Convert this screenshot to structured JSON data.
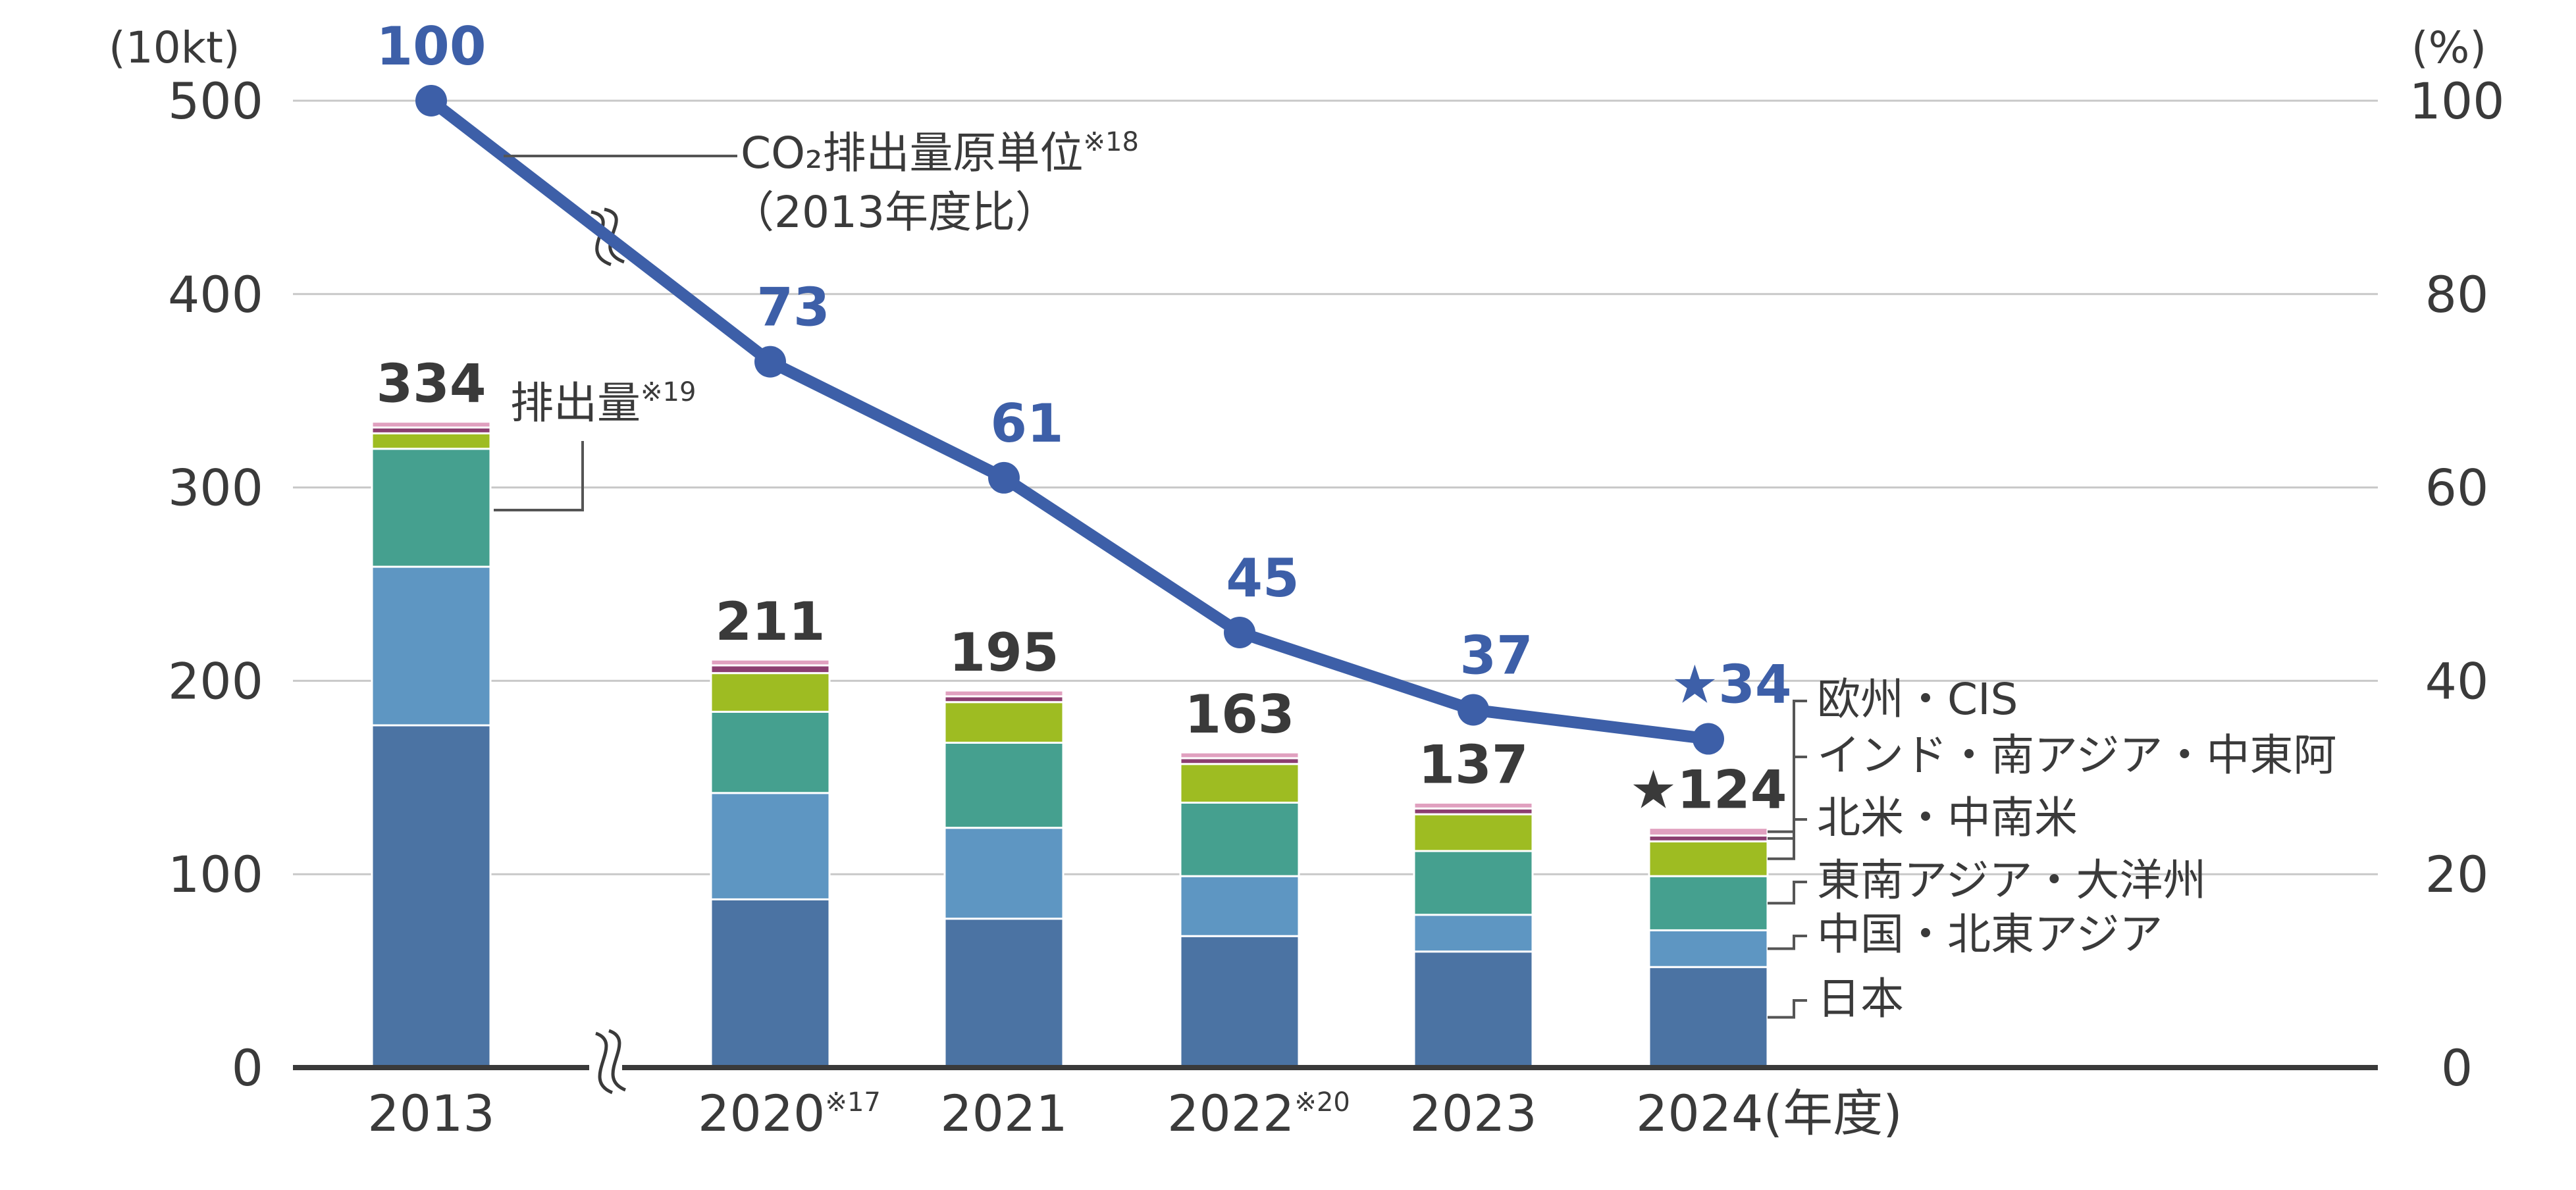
{
  "chart_data": {
    "type": "bar+line",
    "categories": [
      "2013",
      "2020",
      "2021",
      "2022",
      "2023",
      "2024"
    ],
    "category_notes": [
      "",
      "※17",
      "",
      "※20",
      "",
      ""
    ],
    "x_unit": "(年度)",
    "y_left": {
      "unit": "(10kt)",
      "ticks": [
        0,
        100,
        200,
        300,
        400,
        500
      ],
      "ylim": [
        0,
        500
      ]
    },
    "y_right": {
      "unit": "(%)",
      "ticks": [
        0,
        20,
        40,
        60,
        80,
        100
      ],
      "ylim": [
        0,
        100
      ]
    },
    "stack_series": [
      {
        "name": "日本",
        "color": "#4b73a3",
        "values": [
          177,
          87,
          77,
          68,
          60,
          52
        ]
      },
      {
        "name": "中国・北東アジア",
        "color": "#5e96c2",
        "values": [
          82,
          55,
          47,
          31,
          19,
          19
        ]
      },
      {
        "name": "東南アジア・大洋州",
        "color": "#45a08f",
        "values": [
          61,
          42,
          44,
          38,
          33,
          28
        ]
      },
      {
        "name": "北米・中南米",
        "color": "#9ebc22",
        "values": [
          8,
          20,
          21,
          20,
          19,
          18
        ]
      },
      {
        "name": "インド・南アジア・中東阿",
        "color": "#8c3e70",
        "values": [
          3,
          4,
          3,
          3,
          3,
          3
        ]
      },
      {
        "name": "欧州・CIS",
        "color": "#e0a0bf",
        "values": [
          3,
          3,
          3,
          3,
          3,
          4
        ]
      }
    ],
    "totals": [
      "334",
      "211",
      "195",
      "163",
      "137",
      "★124"
    ],
    "emission_label": "排出量",
    "emission_note": "※19",
    "intensity": {
      "name_line1": "CO₂排出量原単位",
      "name_note": "※18",
      "name_line2": "（2013年度比）",
      "values": [
        100,
        73,
        61,
        45,
        37,
        34
      ],
      "labels": [
        "100",
        "73",
        "61",
        "45",
        "37",
        "★34"
      ],
      "color": "#3d5fa8"
    }
  }
}
